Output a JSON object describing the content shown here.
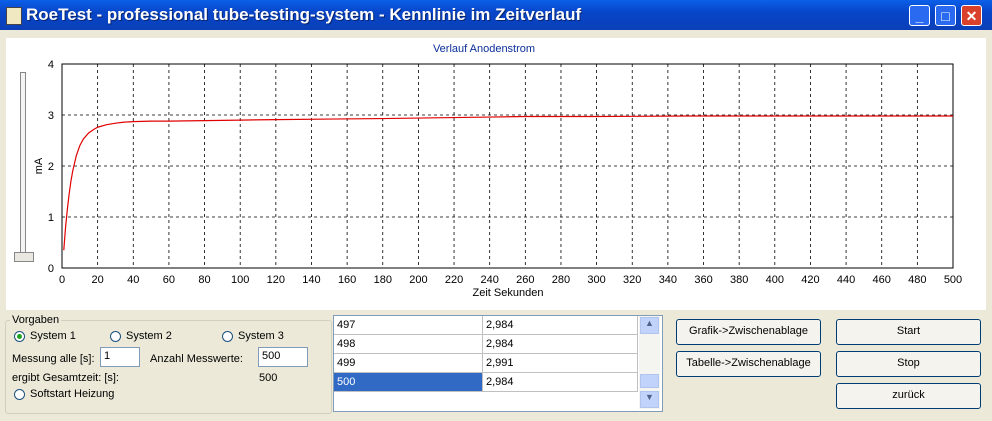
{
  "window_title": "RoeTest - professional tube-testing-system - Kennlinie im Zeitverlauf",
  "chart_data": {
    "type": "line",
    "title": "Verlauf Anodenstrom",
    "x_label": "Zeit Sekunden",
    "y_label": "mA",
    "x": [
      1,
      2,
      3,
      4,
      5,
      6,
      8,
      10,
      12,
      15,
      18,
      20,
      25,
      30,
      35,
      40,
      50,
      60,
      80,
      100,
      120,
      150,
      180,
      200,
      240,
      260,
      300,
      350,
      400,
      450,
      500
    ],
    "series": [
      {
        "name": "Anodenstrom",
        "color": "#e00000",
        "values": [
          0.35,
          0.8,
          1.15,
          1.45,
          1.7,
          1.9,
          2.2,
          2.4,
          2.53,
          2.65,
          2.72,
          2.76,
          2.81,
          2.84,
          2.86,
          2.87,
          2.88,
          2.88,
          2.89,
          2.9,
          2.91,
          2.92,
          2.93,
          2.94,
          2.96,
          2.97,
          2.97,
          2.98,
          2.98,
          2.98,
          2.98
        ]
      }
    ],
    "xlim": [
      0,
      500
    ],
    "xticks": [
      0,
      20,
      40,
      60,
      80,
      100,
      120,
      140,
      160,
      180,
      200,
      220,
      240,
      260,
      280,
      300,
      320,
      340,
      360,
      380,
      400,
      420,
      440,
      460,
      480,
      500
    ],
    "ylim": [
      0,
      4
    ],
    "yticks": [
      0,
      1,
      2,
      3,
      4
    ],
    "grid": true
  },
  "settings": {
    "group_title": "Vorgaben",
    "systems": [
      "System 1",
      "System 2",
      "System 3"
    ],
    "interval_label": "Messung alle [s]:",
    "interval_value": "1",
    "count_label": "Anzahl Messwerte:",
    "count_value": "500",
    "total_label": "ergibt Gesamtzeit: [s]:",
    "total_value": "500",
    "softstart": "Softstart Heizung"
  },
  "table": {
    "rows": [
      [
        "497",
        "2,984"
      ],
      [
        "498",
        "2,984"
      ],
      [
        "499",
        "2,991"
      ],
      [
        "500",
        "2,984"
      ]
    ]
  },
  "buttons": {
    "graphic": "Grafik->Zwischenablage",
    "table": "Tabelle->Zwischenablage",
    "start": "Start",
    "stop": "Stop",
    "back": "zurück"
  }
}
